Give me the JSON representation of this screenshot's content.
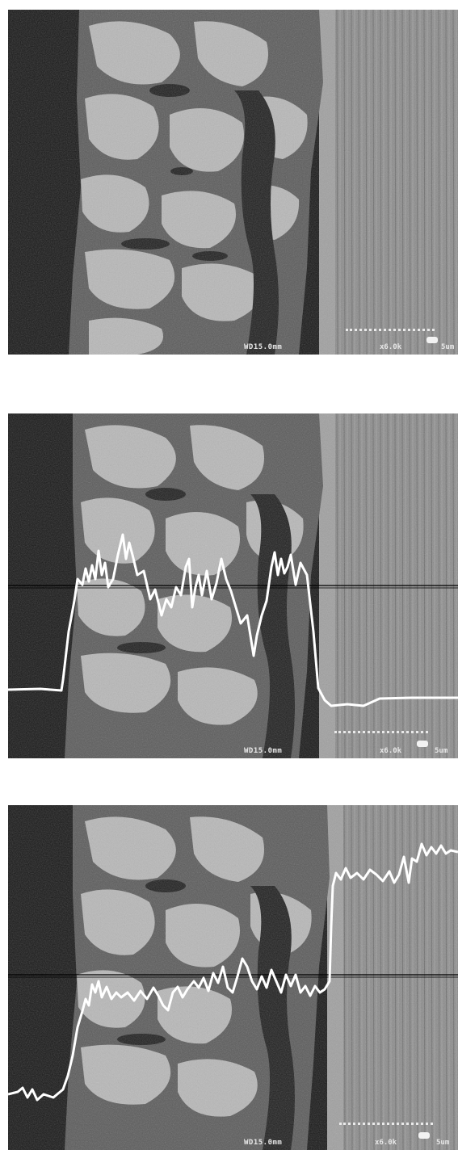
{
  "panels": [
    {
      "id": "micrograph-plain",
      "overlay": "none",
      "working_distance_label": "WD15.0mm",
      "magnification_label": "x6.0k",
      "scale_label": "5um"
    },
    {
      "id": "micrograph-linescan-1",
      "overlay": "linescan",
      "working_distance_label": "WD15.0mm",
      "magnification_label": "x6.0k",
      "scale_label": "5um"
    },
    {
      "id": "micrograph-linescan-2",
      "overlay": "linescan",
      "working_distance_label": "WD15.0mm",
      "magnification_label": "x6.0k",
      "scale_label": "5um"
    }
  ],
  "colors": {
    "background": "#ffffff",
    "substrate": "#8a8a8a",
    "coating": "#9c9c9c",
    "dark_region": "#151515",
    "trace": "#ffffff",
    "scan_line": "#000000"
  }
}
